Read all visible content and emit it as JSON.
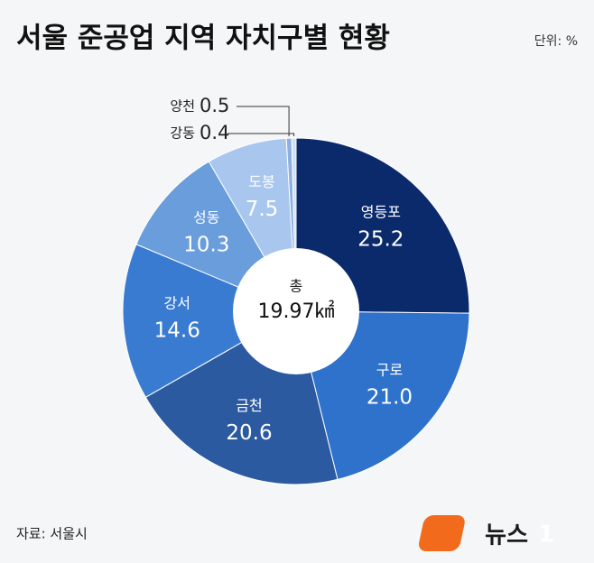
{
  "chart_data": {
    "type": "donut",
    "title": "서울 준공업 지역 자치구별 현황",
    "unit": "단위: %",
    "source": "자료: 서울시",
    "brand": {
      "text": "뉴스",
      "mark": "1"
    },
    "center": {
      "label": "총",
      "value": "19.97㎢"
    },
    "categories": [
      "영등포",
      "구로",
      "금천",
      "강서",
      "성동",
      "도봉",
      "양천",
      "강동"
    ],
    "values": [
      25.2,
      21.0,
      20.6,
      14.6,
      10.3,
      7.5,
      0.5,
      0.4
    ],
    "value_labels": [
      "25.2",
      "21.0",
      "20.6",
      "14.6",
      "10.3",
      "7.5",
      "0.5",
      "0.4"
    ],
    "colors": [
      "#0b2a6c",
      "#2f72cc",
      "#2c5aa0",
      "#3a7bd2",
      "#6a9ddb",
      "#a9c7ee",
      "#8fb0dc",
      "#cfdff5"
    ]
  }
}
